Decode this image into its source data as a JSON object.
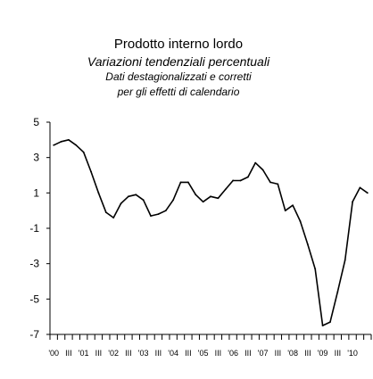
{
  "chart_data": {
    "type": "line",
    "title": "Prodotto interno lordo",
    "subtitle": "Variazioni tendenziali percentuali",
    "note_line1": "Dati destagionalizzati e corretti",
    "note_line2": "per gli effetti di calendario",
    "xlabel": "",
    "ylabel": "",
    "ylim": [
      -7,
      5
    ],
    "yticks": [
      5,
      3,
      1,
      -1,
      -3,
      -5,
      -7
    ],
    "ytick_labels": [
      "5",
      "3",
      "1",
      "-1",
      "-3",
      "-5",
      "-7"
    ],
    "grid": false,
    "x_start": "2000 Q1",
    "x_tick_labels": [
      "'00",
      "III",
      "'01",
      "III",
      "'02",
      "III",
      "'03",
      "III",
      "'04",
      "III",
      "'05",
      "III",
      "'06",
      "III",
      "'07",
      "III",
      "'08",
      "III",
      "'09",
      "III",
      "'10"
    ],
    "series": [
      {
        "color": "#000000",
        "values": [
          3.7,
          3.9,
          4.0,
          3.7,
          3.3,
          2.2,
          1.0,
          -0.1,
          -0.4,
          0.4,
          0.8,
          0.9,
          0.6,
          -0.3,
          -0.2,
          0.0,
          0.6,
          1.6,
          1.6,
          0.9,
          0.5,
          0.8,
          0.7,
          1.2,
          1.7,
          1.7,
          1.9,
          2.7,
          2.3,
          1.6,
          1.5,
          0.0,
          0.3,
          -0.6,
          -1.9,
          -3.3,
          -6.5,
          -6.3,
          -4.6,
          -2.8,
          0.5,
          1.3,
          1.0
        ]
      }
    ]
  }
}
